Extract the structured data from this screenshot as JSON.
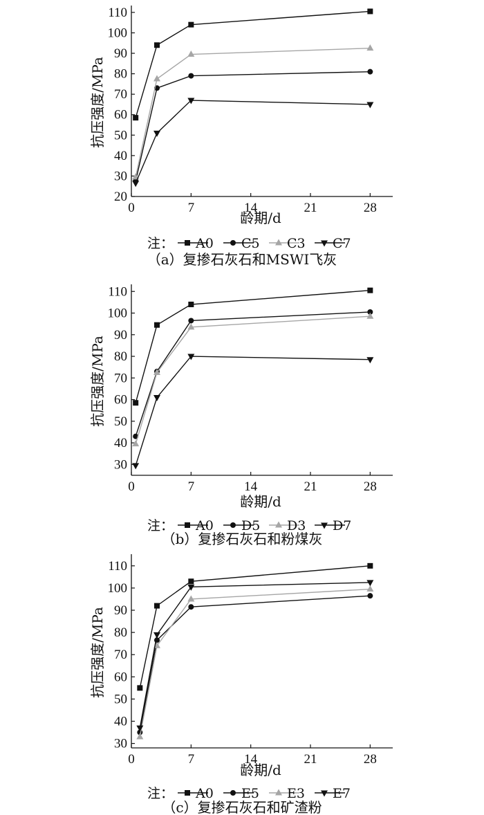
{
  "legend_prefix": "注：",
  "chart_data": [
    {
      "type": "line",
      "caption": "（a）复掺石灰石和MSWI飞灰",
      "xlabel": "龄期/d",
      "ylabel": "抗压强度/MPa",
      "xlim": [
        0,
        30
      ],
      "ylim": [
        20,
        112
      ],
      "xticks": [
        0,
        7,
        14,
        21,
        28
      ],
      "yticks": [
        20,
        30,
        40,
        50,
        60,
        70,
        80,
        90,
        100,
        110
      ],
      "x": [
        0.5,
        3,
        7,
        28
      ],
      "series": [
        {
          "name": "A0",
          "marker": "square",
          "color": "#111111",
          "values": [
            58.5,
            94,
            104,
            110.5
          ]
        },
        {
          "name": "C5",
          "marker": "circle",
          "color": "#111111",
          "values": [
            27.5,
            73,
            79,
            81
          ]
        },
        {
          "name": "C3",
          "marker": "triangle-up",
          "color": "#a6a6a6",
          "values": [
            29.5,
            77.5,
            89.5,
            92.5
          ]
        },
        {
          "name": "C7",
          "marker": "triangle-down",
          "color": "#111111",
          "values": [
            26.5,
            51,
            67,
            65
          ]
        }
      ]
    },
    {
      "type": "line",
      "caption": "（b）复掺石灰石和粉煤灰",
      "xlabel": "龄期/d",
      "ylabel": "抗压强度/MPa",
      "xlim": [
        0,
        30
      ],
      "ylim": [
        25,
        112
      ],
      "xticks": [
        0,
        7,
        14,
        21,
        28
      ],
      "yticks": [
        30,
        40,
        50,
        60,
        70,
        80,
        90,
        100,
        110
      ],
      "x": [
        0.5,
        3,
        7,
        28
      ],
      "series": [
        {
          "name": "A0",
          "marker": "square",
          "color": "#111111",
          "values": [
            58.5,
            94.5,
            104,
            110.5
          ]
        },
        {
          "name": "D5",
          "marker": "circle",
          "color": "#111111",
          "values": [
            43,
            73,
            96.5,
            100.5
          ]
        },
        {
          "name": "D3",
          "marker": "triangle-up",
          "color": "#a6a6a6",
          "values": [
            39.5,
            72.5,
            93.5,
            98.5
          ]
        },
        {
          "name": "D7",
          "marker": "triangle-down",
          "color": "#111111",
          "values": [
            29.5,
            61,
            80,
            78.5
          ]
        }
      ]
    },
    {
      "type": "line",
      "caption": "（c）复掺石灰石和矿渣粉",
      "xlabel": "龄期/d",
      "ylabel": "抗压强度/MPa",
      "xlim": [
        0,
        30
      ],
      "ylim": [
        28,
        114
      ],
      "xticks": [
        0,
        7,
        14,
        21,
        28
      ],
      "yticks": [
        30,
        40,
        50,
        60,
        70,
        80,
        90,
        100,
        110
      ],
      "x": [
        1,
        3,
        7,
        28
      ],
      "series": [
        {
          "name": "A0",
          "marker": "square",
          "color": "#111111",
          "values": [
            55,
            92,
            103,
            110
          ]
        },
        {
          "name": "E5",
          "marker": "circle",
          "color": "#111111",
          "values": [
            35,
            76.5,
            91.5,
            96.5
          ]
        },
        {
          "name": "E3",
          "marker": "triangle-up",
          "color": "#a6a6a6",
          "values": [
            33,
            74,
            95,
            99.5
          ]
        },
        {
          "name": "E7",
          "marker": "triangle-down",
          "color": "#111111",
          "values": [
            37,
            79,
            100.5,
            102.5
          ]
        }
      ]
    }
  ]
}
